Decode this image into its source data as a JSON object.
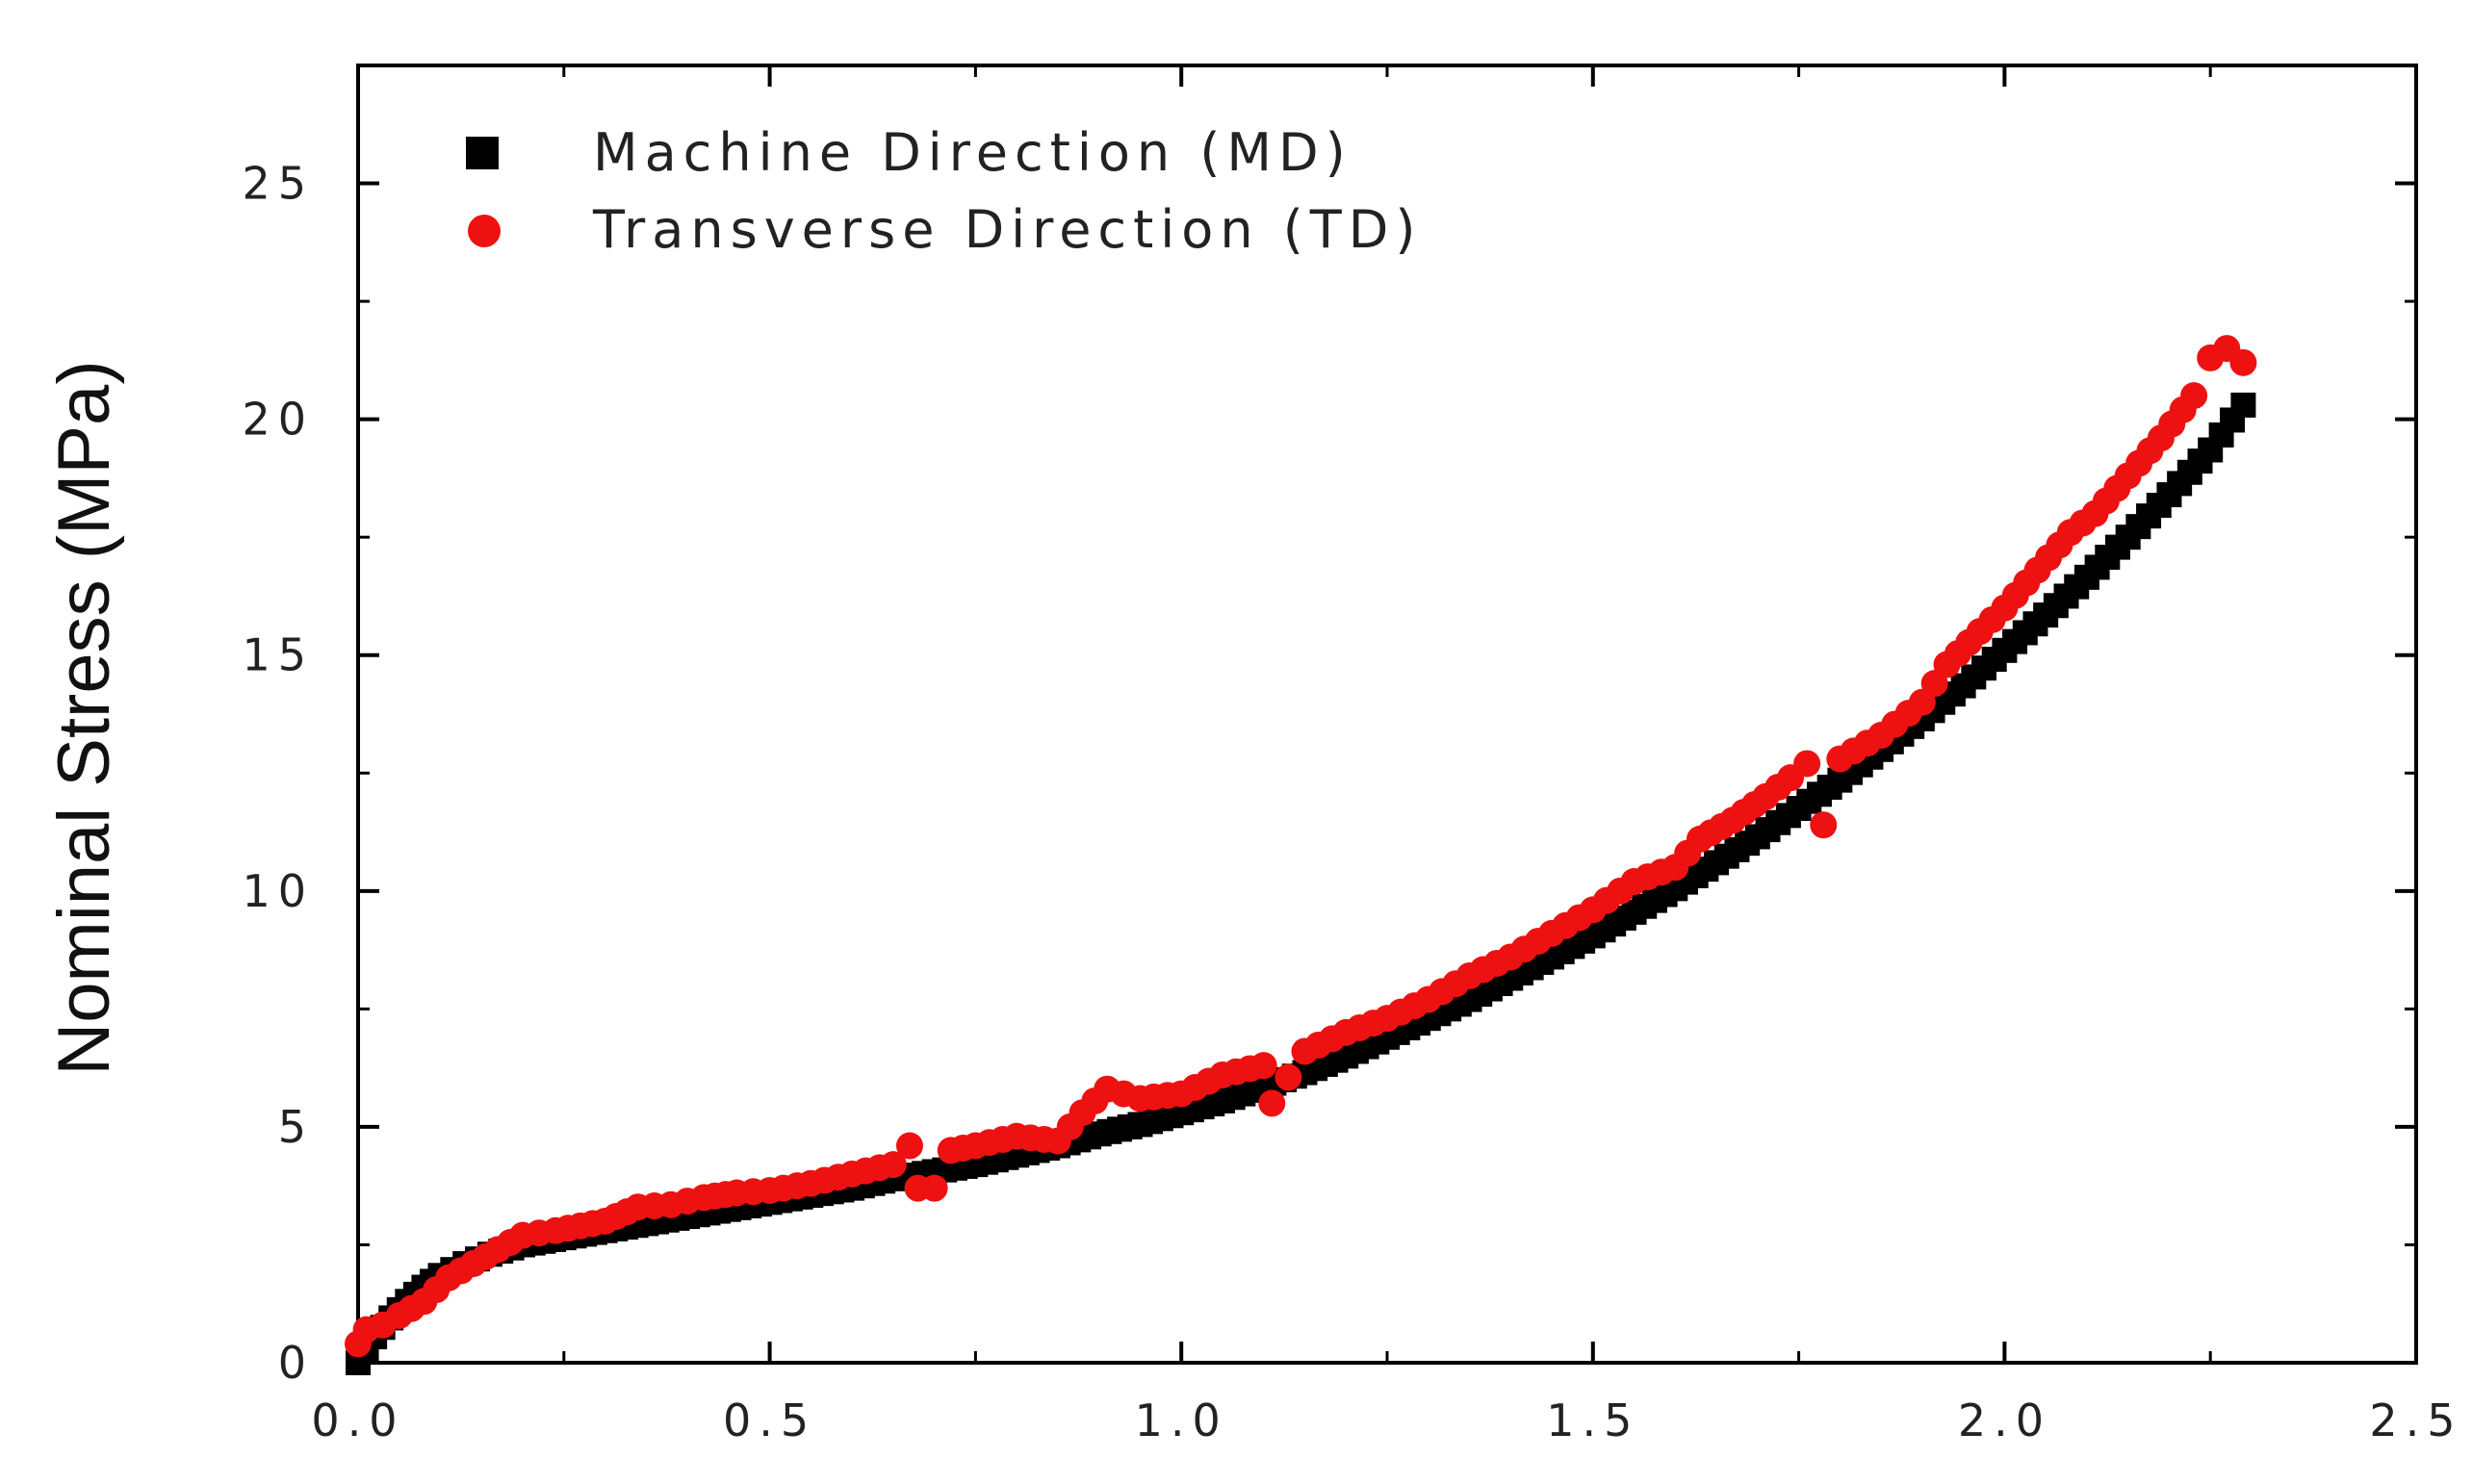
{
  "chart_data": {
    "type": "scatter",
    "title": "",
    "xlabel": "",
    "ylabel": "Nominal Stress (MPa)",
    "xlim": [
      0.0,
      2.5
    ],
    "ylim": [
      0,
      27.5
    ],
    "xticks": [
      "0.0",
      "0.5",
      "1.0",
      "1.5",
      "2.0",
      "2.5"
    ],
    "yticks": [
      "0",
      "5",
      "10",
      "15",
      "20",
      "25"
    ],
    "grid": false,
    "legend_position": "top-left",
    "series": [
      {
        "name": "Machine Direction (MD)",
        "marker": "square",
        "color": "#000000",
        "points": [
          [
            0.0,
            0.0
          ],
          [
            0.01,
            0.25
          ],
          [
            0.02,
            0.55
          ],
          [
            0.04,
            0.95
          ],
          [
            0.06,
            1.3
          ],
          [
            0.08,
            1.6
          ],
          [
            0.1,
            1.85
          ],
          [
            0.13,
            2.1
          ],
          [
            0.16,
            2.3
          ],
          [
            0.2,
            2.5
          ],
          [
            0.25,
            2.65
          ],
          [
            0.3,
            2.8
          ],
          [
            0.35,
            2.95
          ],
          [
            0.4,
            3.1
          ],
          [
            0.45,
            3.25
          ],
          [
            0.5,
            3.4
          ],
          [
            0.55,
            3.55
          ],
          [
            0.6,
            3.7
          ],
          [
            0.65,
            3.9
          ],
          [
            0.7,
            4.05
          ],
          [
            0.75,
            4.2
          ],
          [
            0.8,
            4.4
          ],
          [
            0.85,
            4.6
          ],
          [
            0.9,
            4.85
          ],
          [
            0.95,
            5.05
          ],
          [
            1.0,
            5.3
          ],
          [
            1.05,
            5.55
          ],
          [
            1.1,
            5.85
          ],
          [
            1.15,
            6.15
          ],
          [
            1.2,
            6.5
          ],
          [
            1.25,
            6.9
          ],
          [
            1.3,
            7.3
          ],
          [
            1.35,
            7.7
          ],
          [
            1.4,
            8.15
          ],
          [
            1.45,
            8.6
          ],
          [
            1.5,
            9.05
          ],
          [
            1.55,
            9.55
          ],
          [
            1.6,
            10.05
          ],
          [
            1.65,
            10.6
          ],
          [
            1.7,
            11.15
          ],
          [
            1.75,
            11.75
          ],
          [
            1.8,
            12.35
          ],
          [
            1.85,
            13.0
          ],
          [
            1.9,
            13.65
          ],
          [
            1.95,
            14.35
          ],
          [
            2.0,
            15.1
          ],
          [
            2.05,
            15.85
          ],
          [
            2.1,
            16.65
          ],
          [
            2.15,
            17.5
          ],
          [
            2.2,
            18.4
          ],
          [
            2.25,
            19.35
          ],
          [
            2.29,
            20.3
          ]
        ]
      },
      {
        "name": "Transverse Direction (TD)",
        "marker": "circle",
        "color": "#ee1111",
        "points": [
          [
            0.0,
            0.4
          ],
          [
            0.01,
            0.7
          ],
          [
            0.03,
            0.8
          ],
          [
            0.05,
            1.0
          ],
          [
            0.08,
            1.3
          ],
          [
            0.11,
            1.8
          ],
          [
            0.14,
            2.1
          ],
          [
            0.17,
            2.4
          ],
          [
            0.2,
            2.7
          ],
          [
            0.24,
            2.8
          ],
          [
            0.3,
            3.0
          ],
          [
            0.34,
            3.3
          ],
          [
            0.38,
            3.35
          ],
          [
            0.42,
            3.5
          ],
          [
            0.46,
            3.6
          ],
          [
            0.5,
            3.65
          ],
          [
            0.55,
            3.8
          ],
          [
            0.6,
            4.0
          ],
          [
            0.65,
            4.2
          ],
          [
            0.67,
            4.6
          ],
          [
            0.68,
            3.7
          ],
          [
            0.7,
            3.7
          ],
          [
            0.72,
            4.5
          ],
          [
            0.75,
            4.6
          ],
          [
            0.8,
            4.8
          ],
          [
            0.85,
            4.7
          ],
          [
            0.88,
            5.3
          ],
          [
            0.91,
            5.8
          ],
          [
            0.95,
            5.6
          ],
          [
            1.0,
            5.7
          ],
          [
            1.05,
            6.1
          ],
          [
            1.1,
            6.3
          ],
          [
            1.11,
            5.5
          ],
          [
            1.15,
            6.6
          ],
          [
            1.2,
            7.0
          ],
          [
            1.25,
            7.3
          ],
          [
            1.3,
            7.7
          ],
          [
            1.35,
            8.2
          ],
          [
            1.4,
            8.6
          ],
          [
            1.45,
            9.1
          ],
          [
            1.5,
            9.6
          ],
          [
            1.55,
            10.2
          ],
          [
            1.6,
            10.5
          ],
          [
            1.63,
            11.1
          ],
          [
            1.67,
            11.5
          ],
          [
            1.71,
            12.0
          ],
          [
            1.74,
            12.4
          ],
          [
            1.76,
            12.7
          ],
          [
            1.78,
            11.4
          ],
          [
            1.8,
            12.8
          ],
          [
            1.85,
            13.3
          ],
          [
            1.9,
            14.0
          ],
          [
            1.93,
            14.8
          ],
          [
            1.97,
            15.5
          ],
          [
            2.0,
            16.0
          ],
          [
            2.04,
            16.8
          ],
          [
            2.08,
            17.6
          ],
          [
            2.11,
            18.0
          ],
          [
            2.15,
            18.8
          ],
          [
            2.19,
            19.6
          ],
          [
            2.23,
            20.5
          ],
          [
            2.25,
            21.3
          ],
          [
            2.27,
            21.5
          ],
          [
            2.29,
            21.2
          ]
        ]
      }
    ]
  },
  "colors": {
    "axis": "#000000",
    "md_marker": "#000000",
    "td_marker": "#ee1111"
  }
}
